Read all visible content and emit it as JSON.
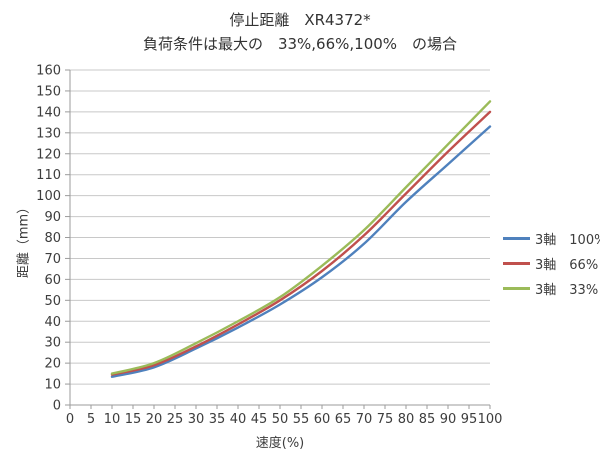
{
  "chart_data": {
    "type": "line",
    "title": "停止距離　XR4372*",
    "subtitle": "負荷条件は最大の　33%,66%,100%　の場合",
    "xlabel": "速度(%)",
    "ylabel": "距離（mm）",
    "xlim": [
      0,
      100
    ],
    "ylim": [
      0,
      160
    ],
    "x_tick_step": 5,
    "y_tick_step": 10,
    "grid": "horizontal",
    "legend_position": "right",
    "x": [
      10,
      20,
      30,
      40,
      50,
      60,
      70,
      80,
      90,
      100
    ],
    "series": [
      {
        "name": "3軸　100%",
        "color": "#4F81BD",
        "values": [
          13.5,
          18,
          27,
          37,
          48,
          61,
          77,
          97,
          115,
          133
        ]
      },
      {
        "name": "3軸　66%",
        "color": "#C0504D",
        "values": [
          14.5,
          19,
          28,
          38.5,
          50,
          64,
          81,
          101,
          121,
          140
        ]
      },
      {
        "name": "3軸　33%",
        "color": "#9BBB59",
        "values": [
          15,
          20,
          29.5,
          40,
          51.5,
          66.5,
          83.5,
          104,
          124.5,
          145
        ]
      }
    ]
  },
  "style_colors": {
    "gridline": "#c8c8c8",
    "axis": "#9b9b9b",
    "tick_text": "#3d3d3d"
  }
}
